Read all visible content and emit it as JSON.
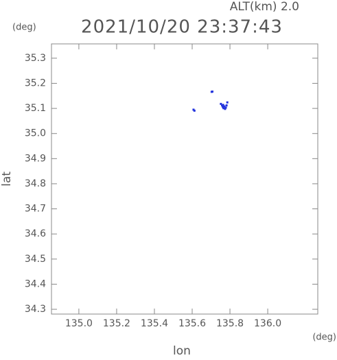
{
  "chart_data": {
    "type": "scatter",
    "title": "2021/10/20 23:37:43",
    "subtitle": "ALT(km) 2.0",
    "y_unit": "(deg)",
    "x_unit": "(deg)",
    "x_label": "lon",
    "y_label": "lat",
    "color": "#2233dd",
    "x": [
      135.607,
      135.612,
      135.703,
      135.707,
      135.752,
      135.758,
      135.762,
      135.766,
      135.77,
      135.774,
      135.778,
      135.782,
      135.786,
      135.764
    ],
    "y": [
      35.095,
      35.091,
      35.166,
      35.167,
      35.118,
      35.112,
      35.106,
      35.101,
      35.108,
      35.098,
      35.103,
      35.112,
      35.124,
      35.114
    ],
    "xlim": [
      134.855,
      136.265
    ],
    "ylim": [
      34.281,
      35.357
    ],
    "xticks": [
      {
        "value": 135.0,
        "label": "135.0"
      },
      {
        "value": 135.2,
        "label": "135.2"
      },
      {
        "value": 135.4,
        "label": "135.4"
      },
      {
        "value": 135.6,
        "label": "135.6"
      },
      {
        "value": 135.8,
        "label": "135.8"
      },
      {
        "value": 136.0,
        "label": "136.0"
      }
    ],
    "yticks": [
      {
        "value": 34.3,
        "label": "34.3"
      },
      {
        "value": 34.4,
        "label": "34.4"
      },
      {
        "value": 34.5,
        "label": "34.5"
      },
      {
        "value": 34.6,
        "label": "34.6"
      },
      {
        "value": 34.7,
        "label": "34.7"
      },
      {
        "value": 34.8,
        "label": "34.8"
      },
      {
        "value": 34.9,
        "label": "34.9"
      },
      {
        "value": 35.0,
        "label": "35.0"
      },
      {
        "value": 35.1,
        "label": "35.1"
      },
      {
        "value": 35.2,
        "label": "35.2"
      },
      {
        "value": 35.3,
        "label": "35.3"
      }
    ]
  }
}
